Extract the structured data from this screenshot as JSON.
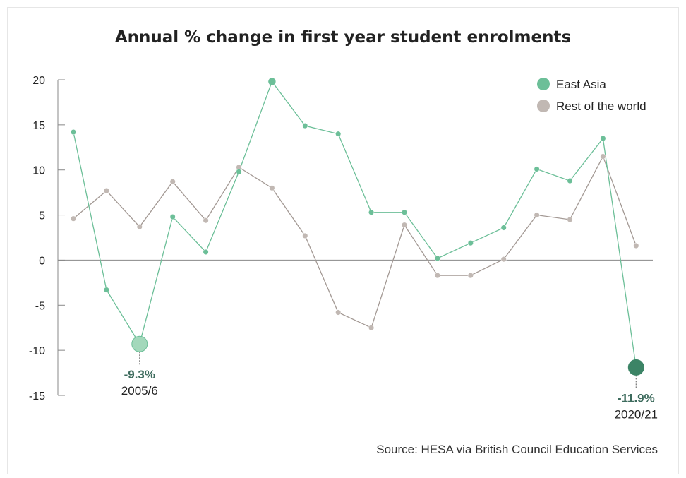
{
  "title": "Annual % change in first year student enrolments",
  "source": "Source: HESA via British Council Education Services",
  "colors": {
    "east_asia": "#6cbf98",
    "east_asia_dark": "#3c8466",
    "east_asia_light": "#a3d8bb",
    "rest_of_world": "#c1b8b3",
    "rest_of_world_line": "#a39994",
    "axis": "#888888",
    "annotation_value": "#3d6b5d",
    "text": "#222222"
  },
  "chart_data": {
    "type": "line",
    "title": "Annual % change in first year student enrolments",
    "xlabel": "",
    "ylabel": "",
    "ylim": [
      -15,
      20
    ],
    "yticks": [
      20,
      15,
      10,
      5,
      0,
      -5,
      -10,
      -15
    ],
    "ytick_labels": [
      "20",
      "15",
      "10",
      "5",
      "0",
      "-5",
      "-10",
      "-15"
    ],
    "grid": false,
    "legend": "top-right",
    "series": [
      {
        "name": "East Asia",
        "values": [
          14.2,
          -3.3,
          -9.3,
          4.8,
          0.9,
          9.8,
          19.8,
          14.9,
          14.0,
          5.3,
          5.3,
          0.2,
          1.9,
          3.6,
          10.1,
          8.8,
          13.5,
          -11.9
        ]
      },
      {
        "name": "Rest of the world",
        "values": [
          4.6,
          7.7,
          3.7,
          8.7,
          4.4,
          10.3,
          8.0,
          2.7,
          -5.8,
          -7.5,
          3.9,
          -1.7,
          -1.7,
          0.1,
          5.0,
          4.5,
          11.5,
          1.6
        ]
      }
    ],
    "annotations": [
      {
        "series": 0,
        "index": 2,
        "value": "-9.3%",
        "label": "2005/6"
      },
      {
        "series": 0,
        "index": 17,
        "value": "-11.9%",
        "label": "2020/21"
      }
    ]
  }
}
